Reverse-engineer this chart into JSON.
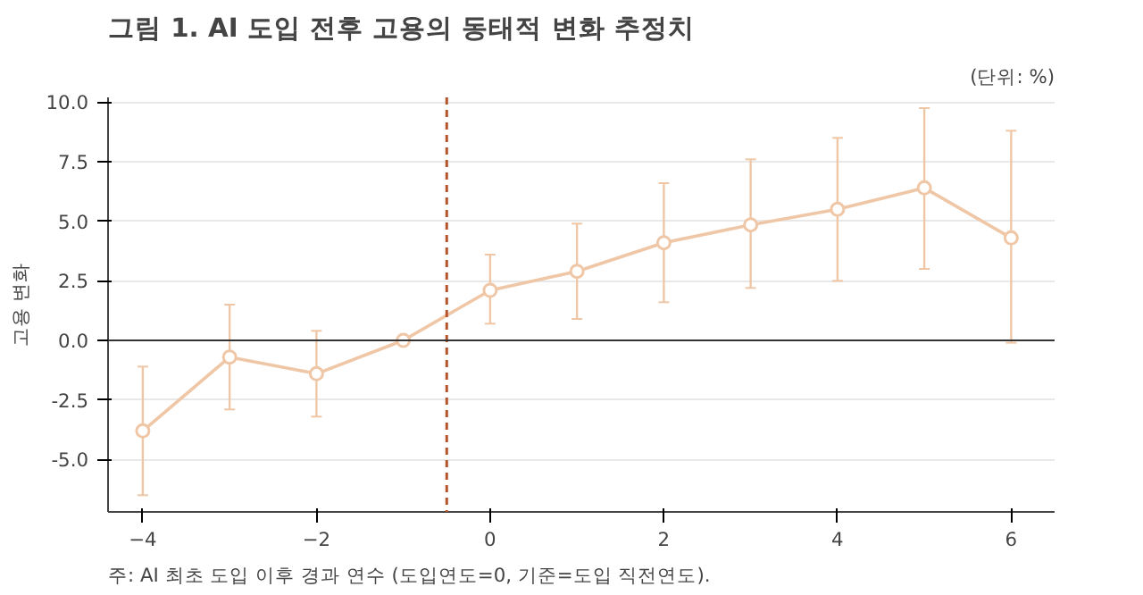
{
  "chart_data": {
    "type": "line",
    "title": "그림 1. AI 도입 전후 고용의 동태적 변화 추정치",
    "ylabel": "고용 변화",
    "annotations": [
      "(단위: %)",
      "주: AI 최초 도입 이후 경과 연수 (도입연도=0, 기준=도입 직전연도)."
    ],
    "x": [
      -4,
      -3,
      -2,
      -1,
      0,
      1,
      2,
      3,
      4,
      5,
      6
    ],
    "series": [
      {
        "color": "#efc7a6",
        "values": [
          -3.8,
          -0.7,
          -1.4,
          0,
          2.1,
          2.9,
          4.1,
          4.85,
          5.5,
          6.4,
          4.3
        ],
        "errors": [
          [
            -6.5,
            -1.1
          ],
          [
            -2.9,
            1.5
          ],
          [
            -3.2,
            0.4
          ],
          null,
          [
            0.7,
            3.6
          ],
          [
            0.9,
            4.9
          ],
          [
            1.6,
            6.6
          ],
          [
            2.2,
            7.6
          ],
          [
            2.5,
            8.5
          ],
          [
            3.0,
            9.75
          ],
          [
            -0.1,
            8.8
          ]
        ]
      }
    ],
    "xlim": [
      -4.4,
      6.5
    ],
    "ylim": [
      -7.2,
      10.2
    ],
    "xticks": [
      -4,
      -2,
      0,
      2,
      4,
      6
    ],
    "yticks": [
      {
        "value": -5,
        "label": "-5.0"
      },
      {
        "value": -2.5,
        "label": "-2.5"
      },
      {
        "value": 0,
        "label": "0.0"
      },
      {
        "value": 2.5,
        "label": "2.5"
      },
      {
        "value": 5,
        "label": "5.0"
      },
      {
        "value": 7.5,
        "label": "7.5"
      },
      {
        "value": 10,
        "label": "10.0"
      }
    ],
    "ref_lines": [
      {
        "axis": "x",
        "value": -0.5,
        "color": "#b5532b",
        "line_style": "dashed"
      },
      {
        "axis": "y",
        "value": 0,
        "color": "#333333",
        "line_style": "solid"
      }
    ],
    "grid": "y",
    "marker": "circle",
    "line_style": "solid"
  }
}
